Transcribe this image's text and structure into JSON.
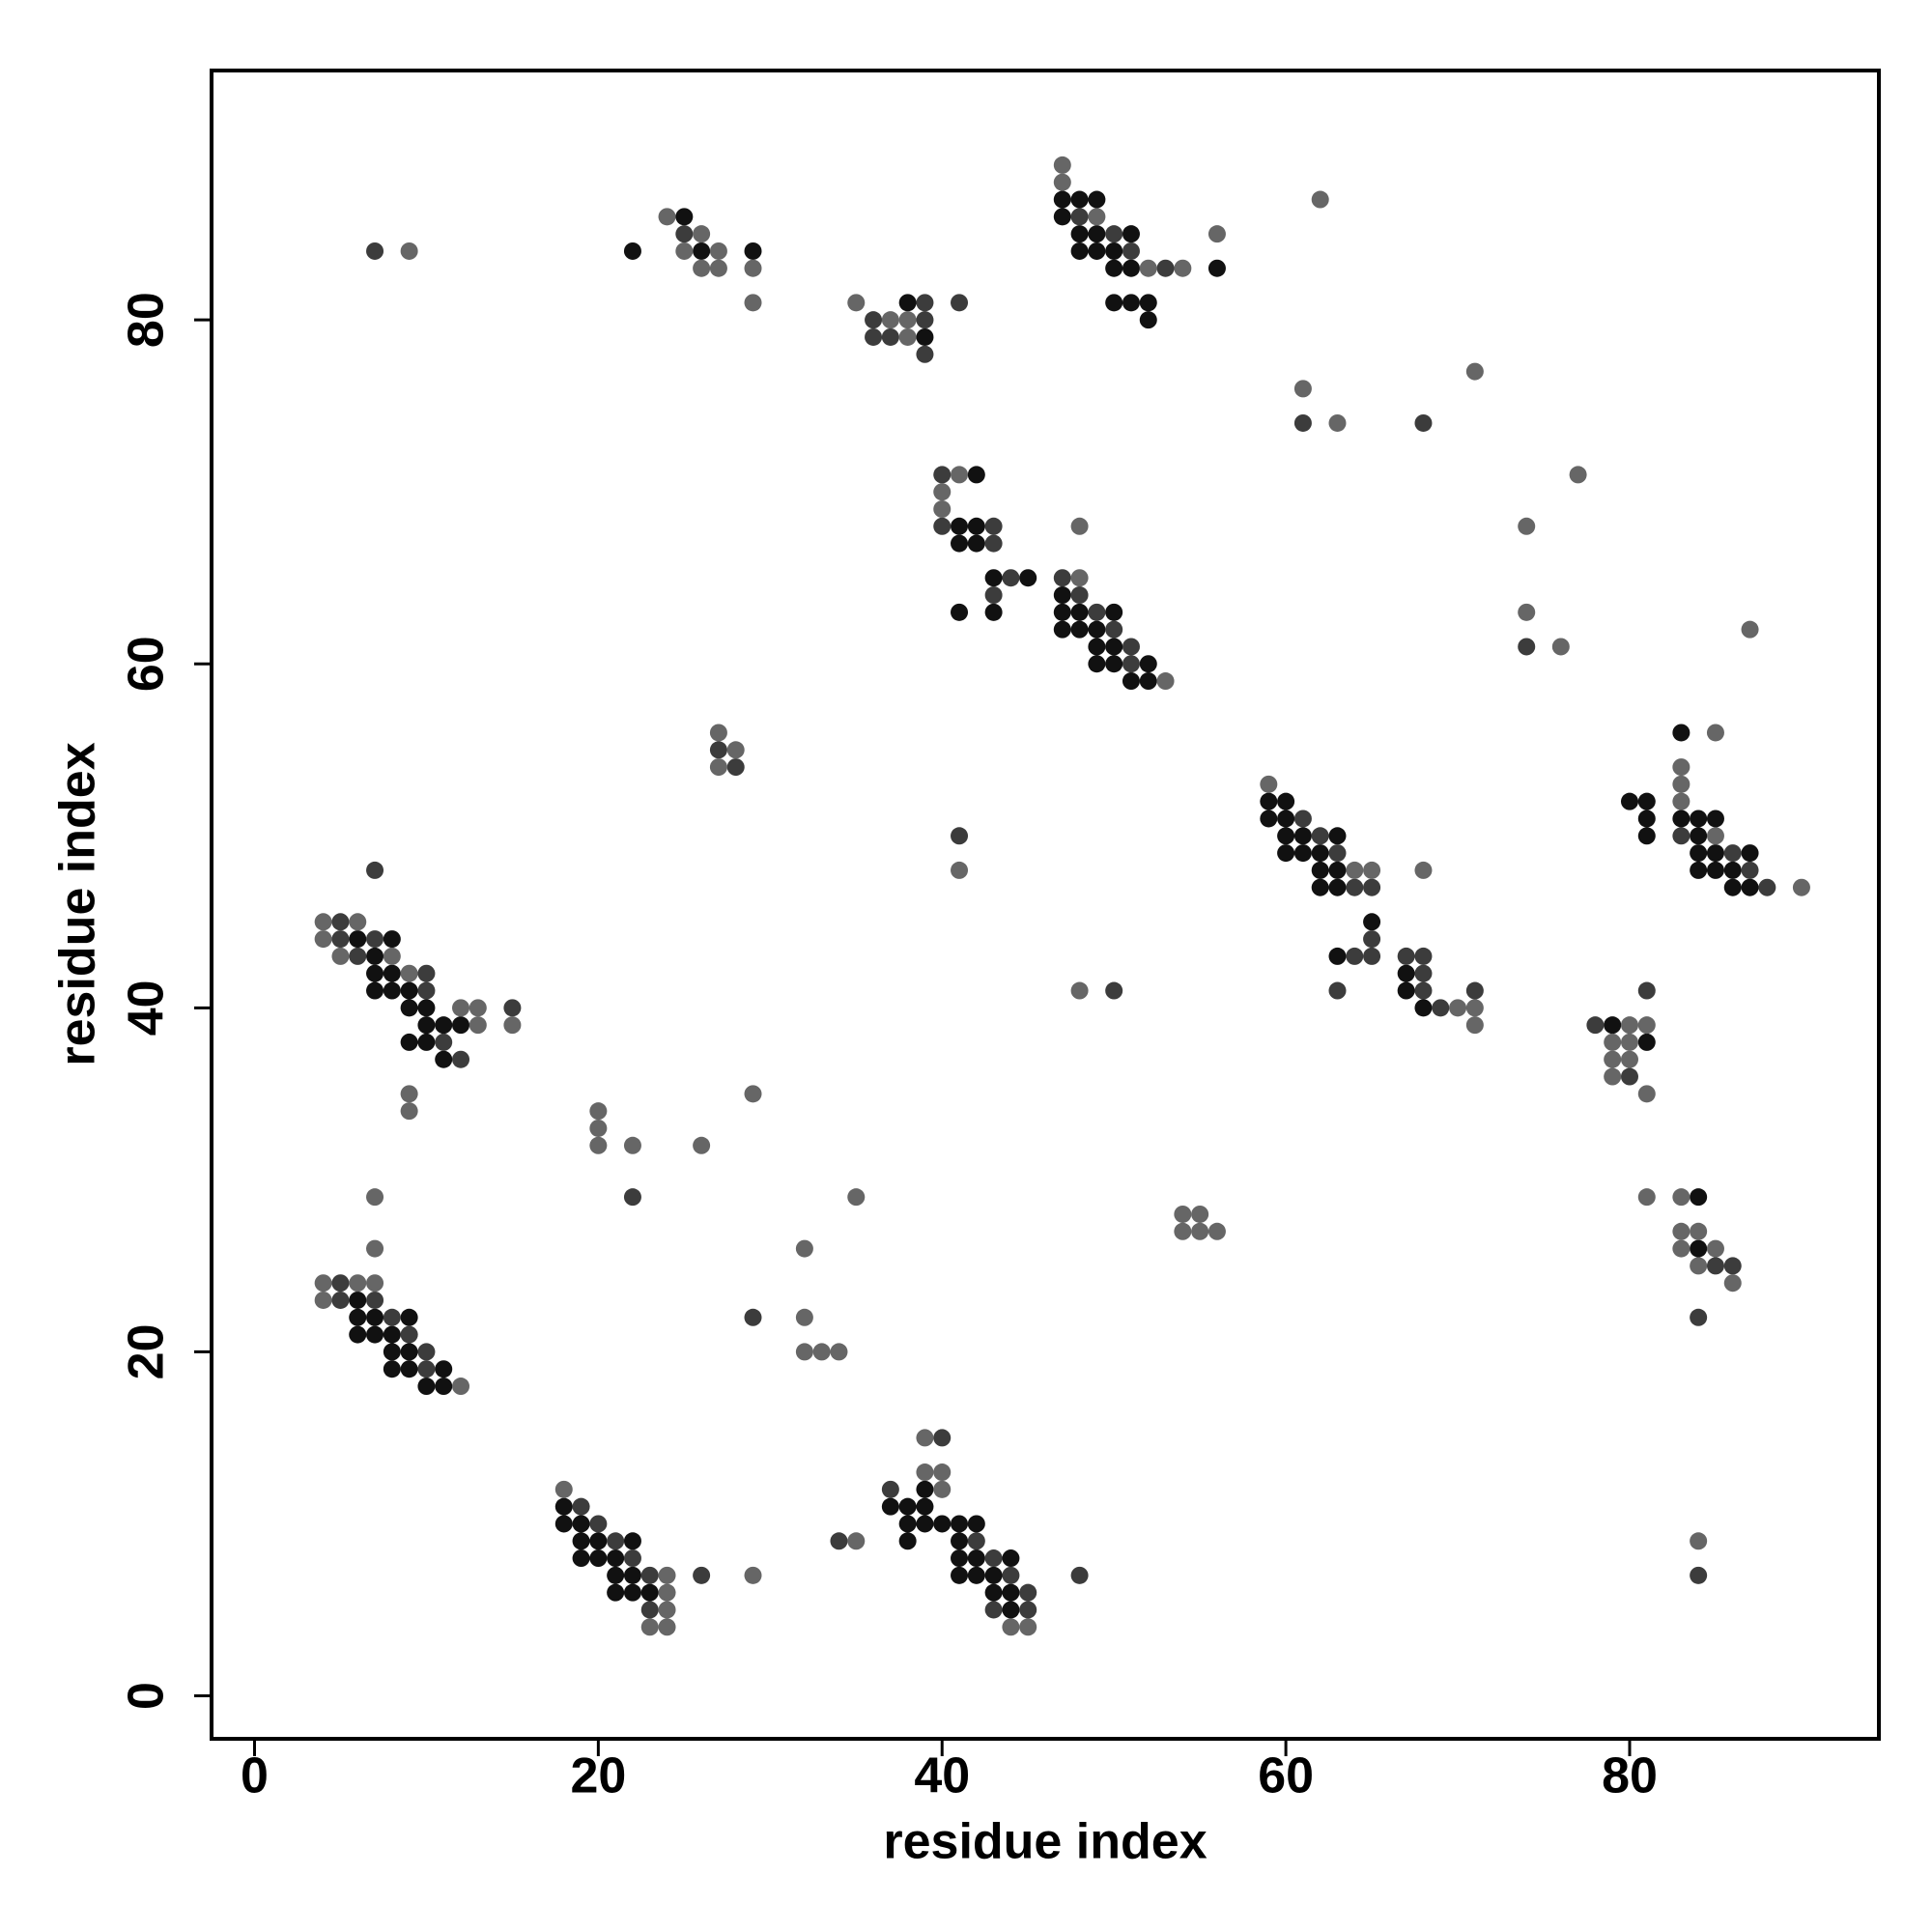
{
  "chart_data": {
    "type": "scatter",
    "xlabel": "residue index",
    "ylabel": "residue index",
    "xlim": [
      -2.5,
      94.5
    ],
    "ylim": [
      -2.5,
      94.5
    ],
    "xticks": [
      0,
      20,
      40,
      60,
      80
    ],
    "yticks": [
      0,
      20,
      40,
      60,
      80
    ],
    "grid": false,
    "series": [
      {
        "color": "#111111",
        "x": [
          18,
          18,
          19,
          19,
          20,
          22,
          19,
          20,
          21,
          21,
          22,
          21,
          22,
          23,
          39,
          37,
          38,
          39,
          38,
          39,
          40,
          41,
          42,
          38,
          41,
          41,
          42,
          44,
          41,
          42,
          43,
          43,
          44,
          44,
          6,
          6,
          7,
          9,
          6,
          7,
          8,
          8,
          9,
          8,
          9,
          11,
          10,
          11,
          84,
          84,
          6,
          8,
          7,
          7,
          8,
          7,
          8,
          9,
          9,
          10,
          10,
          11,
          12,
          9,
          10,
          11,
          59,
          60,
          59,
          60,
          60,
          61,
          63,
          60,
          61,
          62,
          62,
          63,
          62,
          63,
          65,
          63,
          67,
          67,
          68,
          79,
          81,
          83,
          80,
          81,
          81,
          83,
          84,
          85,
          81,
          84,
          84,
          85,
          87,
          84,
          85,
          86,
          86,
          87,
          42,
          41,
          42,
          41,
          42,
          43,
          45,
          41,
          43,
          47,
          47,
          48,
          50,
          47,
          48,
          49,
          49,
          50,
          49,
          50,
          52,
          51,
          52,
          38,
          39,
          22,
          25,
          26,
          29,
          47,
          48,
          49,
          47,
          48,
          49,
          51,
          48,
          49,
          50,
          50,
          51,
          56,
          50,
          51,
          52,
          52
        ],
        "values": [
          11,
          10,
          10,
          9,
          9,
          9,
          8,
          8,
          8,
          7,
          7,
          6,
          6,
          6,
          12,
          11,
          11,
          11,
          10,
          10,
          10,
          10,
          10,
          9,
          9,
          8,
          8,
          8,
          7,
          7,
          7,
          6,
          6,
          5,
          23,
          22,
          22,
          22,
          21,
          21,
          21,
          20,
          20,
          19,
          19,
          19,
          18,
          18,
          29,
          26,
          44,
          44,
          43,
          42,
          42,
          41,
          41,
          41,
          40,
          40,
          39,
          39,
          39,
          38,
          38,
          37,
          52,
          52,
          51,
          51,
          50,
          50,
          50,
          49,
          49,
          49,
          48,
          48,
          47,
          47,
          45,
          43,
          42,
          41,
          40,
          39,
          38,
          56,
          52,
          52,
          51,
          51,
          51,
          51,
          50,
          50,
          49,
          49,
          49,
          48,
          48,
          48,
          47,
          47,
          71,
          68,
          68,
          67,
          67,
          65,
          65,
          63,
          63,
          64,
          63,
          63,
          63,
          62,
          62,
          62,
          61,
          61,
          60,
          60,
          60,
          59,
          59,
          81,
          79,
          84,
          86,
          84,
          84,
          87,
          87,
          87,
          86,
          85,
          85,
          85,
          84,
          84,
          84,
          83,
          83,
          83,
          81,
          81,
          81,
          80
        ]
      },
      {
        "color": "#3c3c3c",
        "x": [
          19,
          20,
          21,
          22,
          23,
          23,
          26,
          40,
          37,
          42,
          43,
          44,
          45,
          43,
          45,
          34,
          48,
          84,
          5,
          5,
          7,
          8,
          9,
          10,
          10,
          29,
          22,
          85,
          86,
          84,
          5,
          5,
          7,
          6,
          10,
          10,
          15,
          11,
          12,
          7,
          27,
          28,
          41,
          50,
          61,
          62,
          63,
          64,
          65,
          65,
          64,
          65,
          67,
          68,
          68,
          63,
          68,
          71,
          69,
          81,
          78,
          80,
          83,
          86,
          87,
          88,
          74,
          61,
          68,
          40,
          40,
          43,
          43,
          44,
          43,
          47,
          48,
          49,
          50,
          51,
          51,
          39,
          41,
          36,
          39,
          36,
          37,
          39,
          25,
          7,
          48,
          50,
          51,
          53
        ],
        "values": [
          11,
          10,
          9,
          8,
          7,
          5,
          7,
          15,
          12,
          9,
          8,
          7,
          6,
          5,
          5,
          9,
          7,
          7,
          24,
          23,
          23,
          22,
          21,
          20,
          19,
          22,
          29,
          25,
          25,
          22,
          45,
          44,
          44,
          43,
          42,
          41,
          40,
          38,
          37,
          48,
          55,
          54,
          50,
          41,
          51,
          50,
          49,
          47,
          47,
          44,
          43,
          43,
          43,
          43,
          42,
          41,
          41,
          41,
          40,
          41,
          39,
          36,
          50,
          49,
          48,
          47,
          61,
          74,
          74,
          71,
          68,
          68,
          67,
          65,
          64,
          65,
          64,
          63,
          62,
          61,
          60,
          81,
          81,
          80,
          80,
          79,
          79,
          78,
          85,
          84,
          86,
          85,
          84,
          83
        ]
      },
      {
        "color": "#666666",
        "x": [
          18,
          24,
          24,
          24,
          23,
          24,
          29,
          39,
          39,
          40,
          40,
          44,
          45,
          35,
          84,
          4,
          6,
          7,
          4,
          12,
          7,
          7,
          32,
          32,
          33,
          34,
          32,
          35,
          20,
          20,
          20,
          22,
          26,
          29,
          54,
          55,
          54,
          55,
          56,
          83,
          83,
          84,
          83,
          85,
          84,
          86,
          81,
          4,
          6,
          4,
          5,
          8,
          9,
          12,
          13,
          13,
          15,
          9,
          9,
          27,
          28,
          27,
          41,
          48,
          59,
          64,
          65,
          68,
          70,
          71,
          71,
          80,
          81,
          79,
          80,
          79,
          80,
          79,
          81,
          85,
          83,
          83,
          83,
          85,
          90,
          74,
          74,
          76,
          77,
          87,
          61,
          63,
          71,
          62,
          41,
          40,
          40,
          48,
          48,
          53,
          35,
          37,
          38,
          38,
          24,
          26,
          25,
          27,
          26,
          27,
          29,
          29,
          9,
          47,
          47,
          49,
          52,
          54,
          56
        ],
        "values": [
          12,
          7,
          6,
          5,
          4,
          4,
          7,
          15,
          13,
          13,
          12,
          4,
          4,
          9,
          9,
          24,
          24,
          24,
          23,
          18,
          26,
          29,
          22,
          20,
          20,
          20,
          26,
          29,
          34,
          33,
          32,
          32,
          32,
          35,
          28,
          28,
          27,
          27,
          27,
          29,
          27,
          27,
          26,
          26,
          25,
          24,
          29,
          45,
          45,
          44,
          43,
          43,
          42,
          40,
          40,
          39,
          39,
          35,
          34,
          56,
          55,
          54,
          48,
          41,
          53,
          48,
          48,
          48,
          40,
          40,
          39,
          39,
          39,
          38,
          38,
          37,
          37,
          36,
          35,
          56,
          54,
          53,
          52,
          50,
          47,
          68,
          63,
          61,
          71,
          62,
          76,
          74,
          77,
          87,
          71,
          70,
          69,
          68,
          65,
          59,
          81,
          80,
          80,
          79,
          86,
          85,
          84,
          84,
          83,
          83,
          83,
          81,
          84,
          89,
          88,
          86,
          83,
          83,
          85
        ]
      }
    ]
  }
}
